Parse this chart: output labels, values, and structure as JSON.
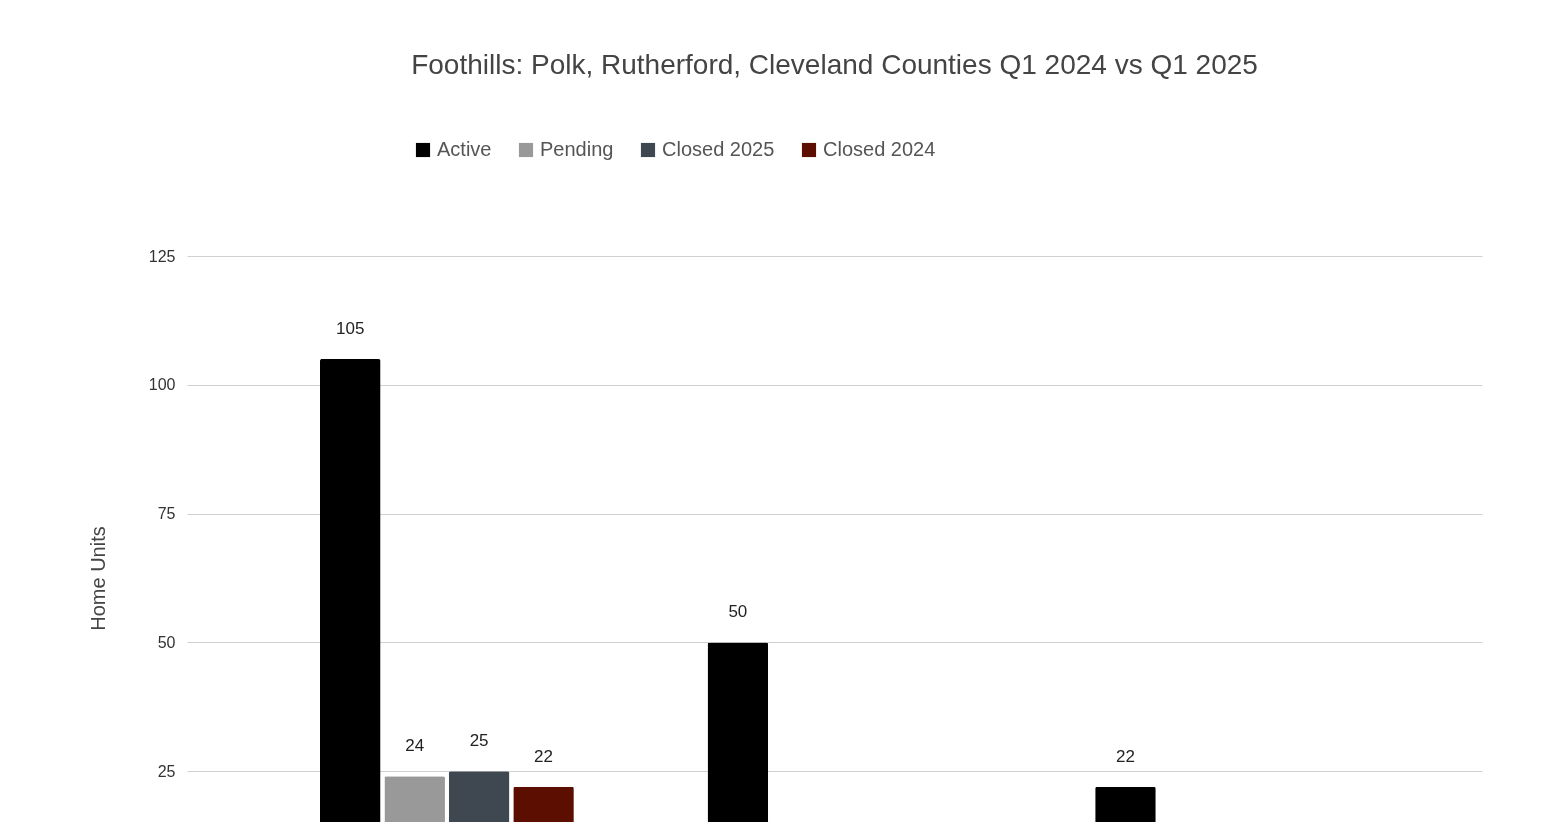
{
  "chart_data": {
    "type": "bar",
    "title": "Foothills: Polk, Rutherford, Cleveland Counties Q1 2024 vs Q1 2025",
    "ylabel": "Home Units",
    "categories": [
      null,
      null,
      null
    ],
    "series": [
      {
        "name": "Active",
        "color": "#000000",
        "values": [
          105,
          50,
          22
        ]
      },
      {
        "name": "Pending",
        "color": "#999999",
        "values": [
          24,
          null,
          null
        ]
      },
      {
        "name": "Closed 2025",
        "color": "#3f4850",
        "values": [
          25,
          null,
          null
        ]
      },
      {
        "name": "Closed 2024",
        "color": "#5c0f00",
        "values": [
          22,
          null,
          null
        ]
      }
    ],
    "ylim": [
      0,
      125
    ],
    "yticks": [
      25,
      50,
      75,
      100,
      125
    ],
    "grid": "y",
    "legend": "top",
    "data_labels": true
  }
}
